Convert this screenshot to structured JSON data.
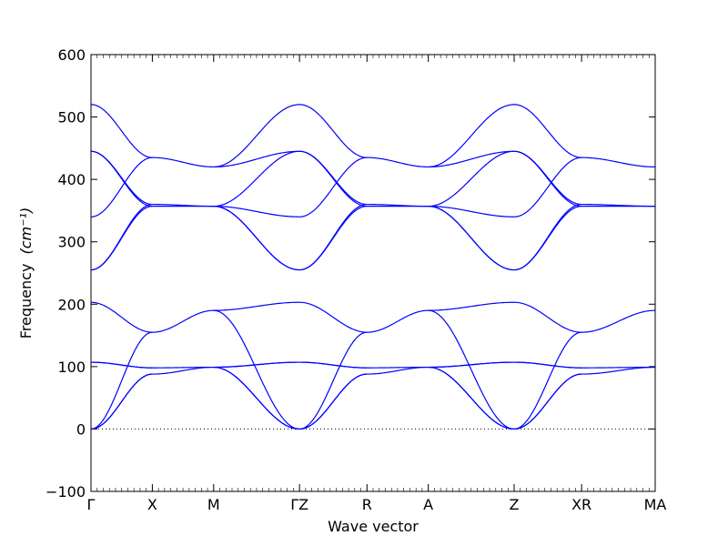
{
  "chart_data": {
    "type": "line",
    "title": "",
    "xlabel": "Wave vector",
    "ylabel": "Frequency",
    "ylabel_unit": "(cm⁻¹)",
    "ylim": [
      -100,
      600
    ],
    "yticks": [
      -100,
      0,
      100,
      200,
      300,
      400,
      500,
      600
    ],
    "xlim": [
      0,
      9.2
    ],
    "high_symmetry_points": [
      {
        "label": "Γ",
        "x": 0
      },
      {
        "label": "X",
        "x": 1.0
      },
      {
        "label": "M",
        "x": 2.0
      },
      {
        "label": "ΓZ",
        "x": 3.4
      },
      {
        "label": "R",
        "x": 4.5
      },
      {
        "label": "A",
        "x": 5.5
      },
      {
        "label": "Z",
        "x": 6.9
      },
      {
        "label": "XR",
        "x": 8.0
      },
      {
        "label": "MA",
        "x": 9.2
      }
    ],
    "zero_line": true,
    "line_color": "#0000ff",
    "segments": [
      {
        "from": "Γ",
        "to": "X",
        "x0": 0,
        "x1": 1.0,
        "curves": [
          {
            "y0": 520,
            "y1": 435
          },
          {
            "y0": 445,
            "y1": 360
          },
          {
            "y0": 445,
            "y1": 357
          },
          {
            "y0": 340,
            "y1": 435
          },
          {
            "y0": 255,
            "y1": 360
          },
          {
            "y0": 255,
            "y1": 357
          },
          {
            "y0": 203,
            "y1": 155
          },
          {
            "y0": 107,
            "y1": 98
          },
          {
            "y0": 107,
            "y1": 98
          },
          {
            "y0": 0,
            "y1": 155
          },
          {
            "y0": 0,
            "y1": 88
          },
          {
            "y0": 0,
            "y1": 88
          }
        ]
      },
      {
        "from": "X",
        "to": "M",
        "x0": 1.0,
        "x1": 2.0,
        "curves": [
          {
            "y0": 435,
            "y1": 420
          },
          {
            "y0": 360,
            "y1": 357
          },
          {
            "y0": 357,
            "y1": 357
          },
          {
            "y0": 155,
            "y1": 190
          },
          {
            "y0": 98,
            "y1": 99
          },
          {
            "y0": 88,
            "y1": 99
          }
        ]
      },
      {
        "from": "M",
        "to": "Γ",
        "x0": 2.0,
        "x1": 3.4,
        "curves": [
          {
            "y0": 420,
            "y1": 520
          },
          {
            "y0": 420,
            "y1": 445
          },
          {
            "y0": 357,
            "y1": 445
          },
          {
            "y0": 357,
            "y1": 340
          },
          {
            "y0": 357,
            "y1": 255
          },
          {
            "y0": 357,
            "y1": 255
          },
          {
            "y0": 190,
            "y1": 203
          },
          {
            "y0": 190,
            "y1": 0
          },
          {
            "y0": 99,
            "y1": 107
          },
          {
            "y0": 99,
            "y1": 107
          },
          {
            "y0": 99,
            "y1": 0
          },
          {
            "y0": 99,
            "y1": 0
          }
        ]
      },
      {
        "from": "Z",
        "to": "R",
        "x0": 3.4,
        "x1": 4.5,
        "curves": [
          {
            "y0": 520,
            "y1": 435
          },
          {
            "y0": 445,
            "y1": 360
          },
          {
            "y0": 445,
            "y1": 357
          },
          {
            "y0": 340,
            "y1": 435
          },
          {
            "y0": 255,
            "y1": 360
          },
          {
            "y0": 255,
            "y1": 357
          },
          {
            "y0": 203,
            "y1": 155
          },
          {
            "y0": 107,
            "y1": 98
          },
          {
            "y0": 107,
            "y1": 98
          },
          {
            "y0": 0,
            "y1": 155
          },
          {
            "y0": 0,
            "y1": 88
          },
          {
            "y0": 0,
            "y1": 88
          }
        ]
      },
      {
        "from": "R",
        "to": "A",
        "x0": 4.5,
        "x1": 5.5,
        "curves": [
          {
            "y0": 435,
            "y1": 420
          },
          {
            "y0": 360,
            "y1": 357
          },
          {
            "y0": 357,
            "y1": 357
          },
          {
            "y0": 155,
            "y1": 190
          },
          {
            "y0": 98,
            "y1": 99
          },
          {
            "y0": 88,
            "y1": 99
          }
        ]
      },
      {
        "from": "A",
        "to": "Z",
        "x0": 5.5,
        "x1": 6.9,
        "curves": [
          {
            "y0": 420,
            "y1": 520
          },
          {
            "y0": 420,
            "y1": 445
          },
          {
            "y0": 357,
            "y1": 445
          },
          {
            "y0": 357,
            "y1": 340
          },
          {
            "y0": 357,
            "y1": 255
          },
          {
            "y0": 357,
            "y1": 255
          },
          {
            "y0": 190,
            "y1": 203
          },
          {
            "y0": 190,
            "y1": 0
          },
          {
            "y0": 99,
            "y1": 107
          },
          {
            "y0": 99,
            "y1": 107
          },
          {
            "y0": 99,
            "y1": 0
          },
          {
            "y0": 99,
            "y1": 0
          }
        ]
      },
      {
        "from": "Z",
        "to": "X",
        "x0": 6.9,
        "x1": 8.0,
        "curves": [
          {
            "y0": 520,
            "y1": 435
          },
          {
            "y0": 445,
            "y1": 360
          },
          {
            "y0": 445,
            "y1": 357
          },
          {
            "y0": 340,
            "y1": 435
          },
          {
            "y0": 255,
            "y1": 360
          },
          {
            "y0": 255,
            "y1": 357
          },
          {
            "y0": 203,
            "y1": 155
          },
          {
            "y0": 107,
            "y1": 98
          },
          {
            "y0": 107,
            "y1": 98
          },
          {
            "y0": 0,
            "y1": 155
          },
          {
            "y0": 0,
            "y1": 88
          },
          {
            "y0": 0,
            "y1": 88
          }
        ]
      },
      {
        "from": "R",
        "to": "M",
        "x0": 8.0,
        "x1": 9.2,
        "curves": [
          {
            "y0": 435,
            "y1": 420
          },
          {
            "y0": 360,
            "y1": 357
          },
          {
            "y0": 357,
            "y1": 357
          },
          {
            "y0": 155,
            "y1": 190
          },
          {
            "y0": 98,
            "y1": 99
          },
          {
            "y0": 88,
            "y1": 99
          }
        ]
      }
    ]
  }
}
